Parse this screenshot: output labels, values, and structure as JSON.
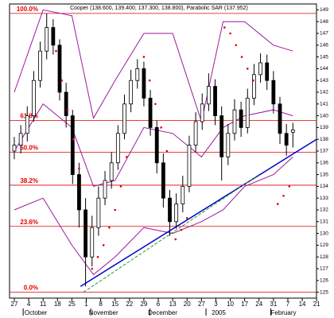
{
  "chart_data": {
    "type": "candlestick",
    "title": "Cooper (138.600, 139.400, 137.300, 138.800), Parabolic SAR (137.952)",
    "xlim": [
      -0.33,
      20.99
    ],
    "ylim": [
      124.5,
      149.5
    ],
    "xticks": [
      {
        "value": 0,
        "label": "27"
      },
      {
        "value": 1,
        "label": "4"
      },
      {
        "value": 2,
        "label": "11"
      },
      {
        "value": 3,
        "label": "18"
      },
      {
        "value": 4,
        "label": "25"
      },
      {
        "value": 5,
        "label": "1"
      },
      {
        "value": 6,
        "label": "8"
      },
      {
        "value": 7,
        "label": "15"
      },
      {
        "value": 8,
        "label": "22"
      },
      {
        "value": 9,
        "label": "29"
      },
      {
        "value": 10,
        "label": "6"
      },
      {
        "value": 11,
        "label": "13"
      },
      {
        "value": 12,
        "label": "20"
      },
      {
        "value": 13,
        "label": "27"
      },
      {
        "value": 14,
        "label": "3"
      },
      {
        "value": 15,
        "label": "10"
      },
      {
        "value": 16,
        "label": "17"
      },
      {
        "value": 17,
        "label": "24"
      },
      {
        "value": 18,
        "label": "31"
      },
      {
        "value": 19,
        "label": "7"
      },
      {
        "value": 20,
        "label": "14"
      },
      {
        "value": 21,
        "label": "21"
      }
    ],
    "month_labels": [
      {
        "value": 1.5,
        "label": "October"
      },
      {
        "value": 6.2,
        "label": "November"
      },
      {
        "value": 10.3,
        "label": "December"
      },
      {
        "value": 14.2,
        "label": "2005"
      },
      {
        "value": 18.7,
        "label": "February"
      }
    ],
    "yticks": [
      125,
      126,
      127,
      128,
      129,
      130,
      131,
      132,
      133,
      134,
      135,
      136,
      137,
      138,
      139,
      140,
      141,
      142,
      143,
      144,
      145,
      146,
      147,
      148,
      149
    ],
    "grid": false,
    "x": [
      0,
      0.45,
      0.9,
      1.35,
      1.8,
      2.25,
      2.7,
      3.15,
      3.6,
      4.05,
      4.5,
      4.95,
      5.4,
      5.85,
      6.3,
      6.75,
      7.2,
      7.65,
      8.1,
      8.55,
      9.0,
      9.45,
      9.9,
      10.35,
      10.8,
      11.25,
      11.7,
      12.15,
      12.6,
      13.05,
      13.5,
      13.95,
      14.4,
      14.85,
      15.3,
      15.75,
      16.2,
      16.65,
      17.1,
      17.55,
      18.0,
      18.45,
      18.9,
      19.35
    ],
    "open": [
      137,
      137.5,
      138.5,
      140,
      143,
      145.5,
      147.5,
      146,
      142,
      140,
      135,
      132,
      128,
      130.5,
      133,
      134.5,
      136,
      138.5,
      141,
      143,
      144,
      141.5,
      139,
      136,
      133,
      131,
      132.5,
      134,
      137.5,
      139.5,
      141,
      142.5,
      140,
      136.5,
      138.5,
      140.5,
      139,
      141.5,
      143.5,
      144.5,
      143,
      141,
      138.5,
      138.6
    ],
    "high": [
      138.2,
      139.2,
      140.8,
      143.8,
      146.3,
      148.7,
      148.2,
      146.5,
      142.8,
      140.5,
      136,
      133,
      131.5,
      134,
      135.3,
      136.9,
      139.2,
      141.8,
      143.9,
      144.8,
      144.6,
      142.2,
      139.6,
      136.8,
      133.7,
      133.4,
      134.9,
      138.3,
      140.3,
      141.9,
      143.6,
      143.1,
      140.8,
      139.3,
      141.4,
      141.2,
      142.3,
      144.4,
      145.3,
      145.2,
      143.8,
      141.6,
      139.3,
      139.4
    ],
    "low": [
      136.3,
      136.8,
      137.8,
      139.5,
      142.4,
      144.8,
      145.2,
      141.3,
      139,
      134.2,
      130.5,
      125.5,
      127.2,
      129.8,
      132.4,
      133.8,
      135.4,
      138,
      140.3,
      142.3,
      140.8,
      138.3,
      135.1,
      132.2,
      129.8,
      130.4,
      131.8,
      133.5,
      136.9,
      138.8,
      140.4,
      139.2,
      134.5,
      135.8,
      137.9,
      138.2,
      138.5,
      140.9,
      142.8,
      142.2,
      140.2,
      137.6,
      136.6,
      137.3
    ],
    "close": [
      137.5,
      138.5,
      140,
      143,
      145.5,
      147.5,
      146,
      142,
      140,
      135,
      132,
      128,
      130.5,
      133,
      134.5,
      136,
      138.5,
      141,
      143,
      144,
      141.5,
      139,
      136,
      133,
      131,
      132.5,
      134,
      137.5,
      139.5,
      141,
      142.5,
      140,
      136.5,
      138.5,
      140.5,
      139,
      141.5,
      143.5,
      144.5,
      143,
      141,
      138.5,
      137.5,
      138.8
    ],
    "bands": {
      "x": [
        0,
        2,
        4,
        5.5,
        7,
        9,
        11,
        13,
        14.5,
        16,
        18,
        19.35
      ],
      "upper": [
        142,
        149,
        148.5,
        139.8,
        143,
        147,
        147,
        139.5,
        148,
        148,
        146,
        145.5
      ],
      "middle": [
        137,
        141,
        139,
        134,
        134.5,
        139,
        138.5,
        136.5,
        139,
        140,
        140.5,
        140
      ],
      "lower": [
        132,
        133,
        129,
        126.5,
        128,
        130.5,
        130,
        131,
        132,
        134,
        135,
        136.5
      ]
    },
    "sar": {
      "x": [
        2.9,
        3.3,
        3.7,
        4.1,
        4.5,
        5.4,
        5.8,
        6.2,
        6.6,
        7.0,
        7.4,
        7.8,
        9.0,
        9.4,
        9.8,
        10.2,
        10.6,
        11.2,
        11.6,
        12.0,
        14.6,
        15.0,
        15.4,
        15.8,
        16.2,
        16.6,
        18.3,
        18.7,
        19.1
      ],
      "values": [
        145.5,
        143,
        140.5,
        138,
        135.5,
        127,
        128,
        129,
        130.5,
        132,
        134,
        136.5,
        145,
        143,
        141,
        139,
        137,
        129.5,
        130.3,
        131.3,
        147.5,
        147,
        146,
        145,
        144,
        143,
        132.5,
        133.2,
        134
      ],
      "color": "#e00000"
    },
    "fib_levels": [
      {
        "value": 148.7,
        "label": "100.0%"
      },
      {
        "value": 139.6,
        "label": "61.8%"
      },
      {
        "value": 136.9,
        "label": "50.0%"
      },
      {
        "value": 134.1,
        "label": "38.2%"
      },
      {
        "value": 130.6,
        "label": "23.6%"
      },
      {
        "value": 125,
        "label": "0.0%"
      }
    ],
    "trendlines": [
      {
        "x": [
          4.6,
          21
        ],
        "values": [
          125.5,
          138
        ],
        "color": "#0000cc"
      },
      {
        "x": [
          4.8,
          17
        ],
        "values": [
          125,
          135
        ],
        "color": "#2a9a2a"
      }
    ],
    "band_color": "#9a1a9a",
    "fib_color": "#e00000"
  }
}
